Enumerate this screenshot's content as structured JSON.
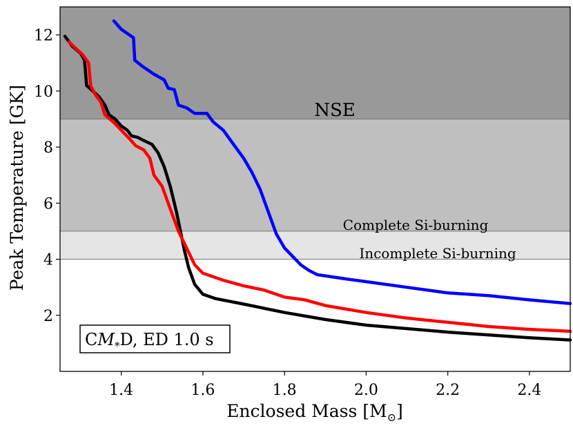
{
  "chart_data": {
    "type": "line",
    "title": "",
    "xlabel": "Enclosed Mass [M",
    "xlabel_sub": "⊙",
    "xlabel_end": "]",
    "ylabel": "Peak Temperature [GK]",
    "xlim": [
      1.25,
      2.5
    ],
    "ylim": [
      0,
      13
    ],
    "xticks": [
      1.4,
      1.6,
      1.8,
      2.0,
      2.2,
      2.4
    ],
    "xtick_labels": [
      "1.4",
      "1.6",
      "1.8",
      "2.0",
      "2.2",
      "2.4"
    ],
    "yticks": [
      2,
      4,
      6,
      8,
      10,
      12
    ],
    "ytick_labels": [
      "2",
      "4",
      "6",
      "8",
      "10",
      "12"
    ],
    "regions": [
      {
        "name": "NSE",
        "label": "NSE",
        "y0": 9,
        "y1": 13,
        "color": "#999999"
      },
      {
        "name": "complete-si",
        "label": "Complete Si-burning",
        "y0": 5,
        "y1": 9,
        "color": "#bfbfbf"
      },
      {
        "name": "incomplete-si",
        "label": "Incomplete Si-burning",
        "y0": 4,
        "y1": 5,
        "color": "#e5e5e5"
      }
    ],
    "annotation": {
      "pre": "C",
      "math": "M",
      "sub": "*",
      "post": "D, ED 1.0 s"
    },
    "series": [
      {
        "name": "black",
        "color": "#000000",
        "points": [
          [
            1.262,
            11.95
          ],
          [
            1.28,
            11.6
          ],
          [
            1.3,
            11.35
          ],
          [
            1.31,
            11.1
          ],
          [
            1.315,
            10.2
          ],
          [
            1.33,
            10.0
          ],
          [
            1.345,
            9.8
          ],
          [
            1.36,
            9.5
          ],
          [
            1.37,
            9.15
          ],
          [
            1.385,
            9.0
          ],
          [
            1.4,
            8.75
          ],
          [
            1.415,
            8.6
          ],
          [
            1.425,
            8.4
          ],
          [
            1.44,
            8.35
          ],
          [
            1.46,
            8.2
          ],
          [
            1.475,
            8.1
          ],
          [
            1.49,
            7.8
          ],
          [
            1.505,
            7.3
          ],
          [
            1.52,
            6.6
          ],
          [
            1.535,
            5.7
          ],
          [
            1.545,
            5.0
          ],
          [
            1.555,
            4.3
          ],
          [
            1.565,
            3.7
          ],
          [
            1.58,
            3.1
          ],
          [
            1.6,
            2.75
          ],
          [
            1.63,
            2.6
          ],
          [
            1.7,
            2.4
          ],
          [
            1.8,
            2.1
          ],
          [
            1.9,
            1.85
          ],
          [
            2.0,
            1.65
          ],
          [
            2.2,
            1.4
          ],
          [
            2.4,
            1.2
          ],
          [
            2.5,
            1.12
          ]
        ]
      },
      {
        "name": "red",
        "color": "#ff0000",
        "points": [
          [
            1.272,
            11.75
          ],
          [
            1.29,
            11.5
          ],
          [
            1.305,
            11.3
          ],
          [
            1.32,
            11.0
          ],
          [
            1.325,
            10.2
          ],
          [
            1.335,
            9.9
          ],
          [
            1.35,
            9.6
          ],
          [
            1.36,
            9.15
          ],
          [
            1.38,
            8.9
          ],
          [
            1.4,
            8.6
          ],
          [
            1.42,
            8.3
          ],
          [
            1.435,
            8.05
          ],
          [
            1.455,
            7.9
          ],
          [
            1.47,
            7.6
          ],
          [
            1.48,
            7.0
          ],
          [
            1.5,
            6.6
          ],
          [
            1.52,
            5.8
          ],
          [
            1.54,
            5.0
          ],
          [
            1.56,
            4.4
          ],
          [
            1.58,
            3.8
          ],
          [
            1.6,
            3.5
          ],
          [
            1.65,
            3.25
          ],
          [
            1.7,
            3.05
          ],
          [
            1.75,
            2.9
          ],
          [
            1.8,
            2.65
          ],
          [
            1.85,
            2.55
          ],
          [
            1.9,
            2.35
          ],
          [
            2.0,
            2.1
          ],
          [
            2.1,
            1.9
          ],
          [
            2.2,
            1.75
          ],
          [
            2.3,
            1.6
          ],
          [
            2.4,
            1.5
          ],
          [
            2.5,
            1.43
          ]
        ]
      },
      {
        "name": "blue",
        "color": "#0000ff",
        "points": [
          [
            1.382,
            12.5
          ],
          [
            1.4,
            12.2
          ],
          [
            1.43,
            11.9
          ],
          [
            1.433,
            11.1
          ],
          [
            1.45,
            10.9
          ],
          [
            1.48,
            10.6
          ],
          [
            1.505,
            10.4
          ],
          [
            1.515,
            10.1
          ],
          [
            1.53,
            10.05
          ],
          [
            1.54,
            9.5
          ],
          [
            1.56,
            9.4
          ],
          [
            1.58,
            9.2
          ],
          [
            1.61,
            9.2
          ],
          [
            1.625,
            8.9
          ],
          [
            1.65,
            8.6
          ],
          [
            1.67,
            8.2
          ],
          [
            1.7,
            7.6
          ],
          [
            1.72,
            7.1
          ],
          [
            1.74,
            6.5
          ],
          [
            1.76,
            5.7
          ],
          [
            1.78,
            4.9
          ],
          [
            1.8,
            4.4
          ],
          [
            1.82,
            4.1
          ],
          [
            1.84,
            3.8
          ],
          [
            1.86,
            3.6
          ],
          [
            1.88,
            3.45
          ],
          [
            1.95,
            3.3
          ],
          [
            2.0,
            3.2
          ],
          [
            2.1,
            3.0
          ],
          [
            2.2,
            2.8
          ],
          [
            2.3,
            2.7
          ],
          [
            2.4,
            2.55
          ],
          [
            2.5,
            2.42
          ]
        ]
      }
    ]
  }
}
